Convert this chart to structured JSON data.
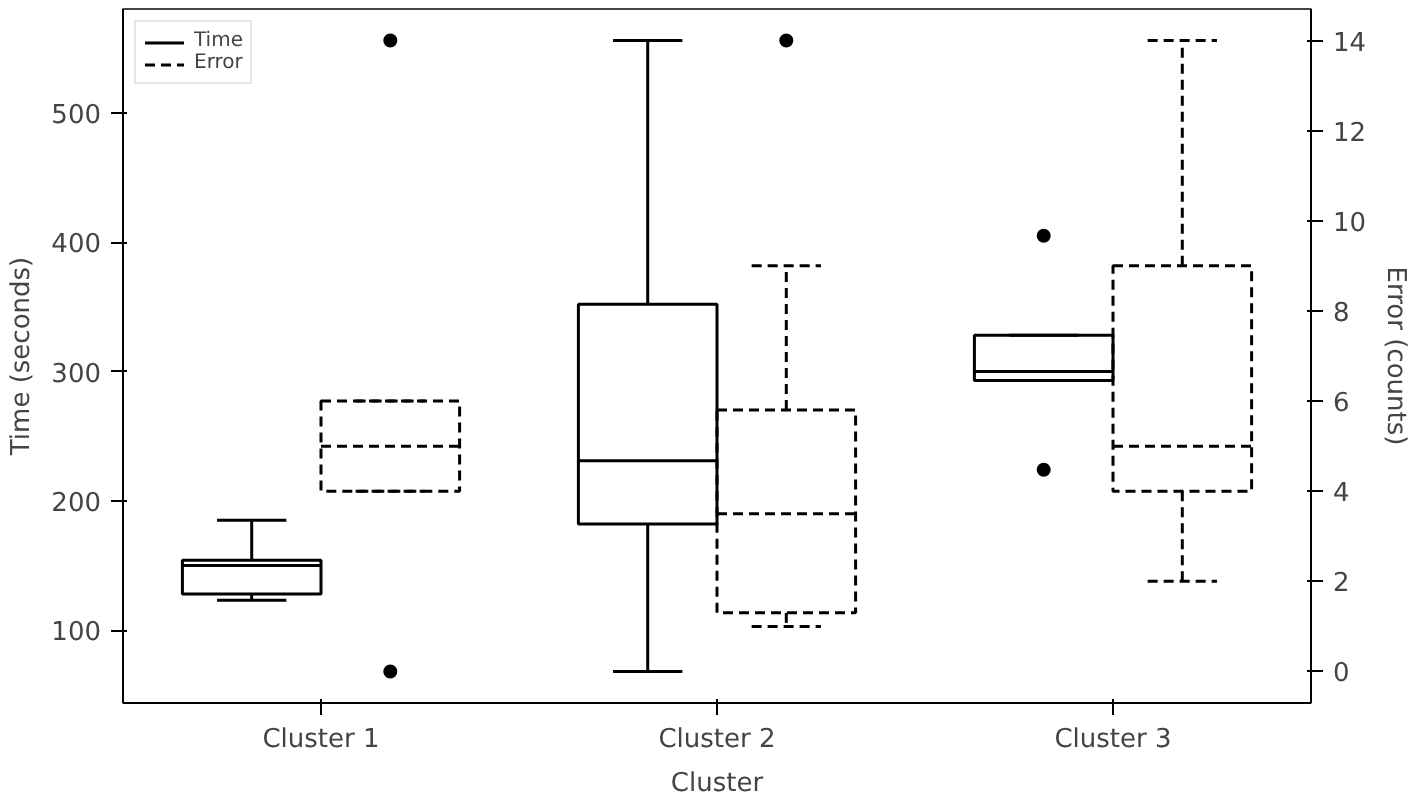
{
  "chart_data": {
    "type": "box",
    "xlabel": "Cluster",
    "ylabel": "Time (seconds)",
    "y2label": "Error (counts)",
    "categories": [
      "Cluster 1",
      "Cluster 2",
      "Cluster 3"
    ],
    "ylim": [
      43.6,
      580.4
    ],
    "yticks": [
      100,
      200,
      300,
      400,
      500
    ],
    "y2lim": [
      -0.7,
      14.7
    ],
    "y2ticks": [
      0,
      2,
      4,
      6,
      8,
      10,
      12,
      14
    ],
    "grid": false,
    "legend": "top left",
    "series": [
      {
        "name": "Time",
        "color": "#000000",
        "line_style": "solid",
        "axis": "y",
        "boxes": [
          {
            "low": 123,
            "q1": 128,
            "median": 150,
            "q3": 154,
            "high": 185
          },
          {
            "low": 68,
            "q1": 182,
            "median": 231,
            "q3": 352,
            "high": 556
          },
          {
            "low": 293,
            "q1": 293,
            "median": 300,
            "q3": 328,
            "high": 328,
            "outliers": [
              405,
              224
            ]
          }
        ]
      },
      {
        "name": "Error",
        "color": "#000000",
        "line_style": "dashed",
        "axis": "y2",
        "boxes": [
          {
            "low": 4,
            "q1": 4,
            "median": 5,
            "q3": 6,
            "high": 6,
            "outliers": [
              14,
              0
            ]
          },
          {
            "low": 1,
            "q1": 1.3,
            "median": 3.5,
            "q3": 5.8,
            "high": 9,
            "outliers": [
              14
            ]
          },
          {
            "low": 2,
            "q1": 4,
            "median": 5,
            "q3": 9,
            "high": 14
          }
        ]
      }
    ]
  }
}
